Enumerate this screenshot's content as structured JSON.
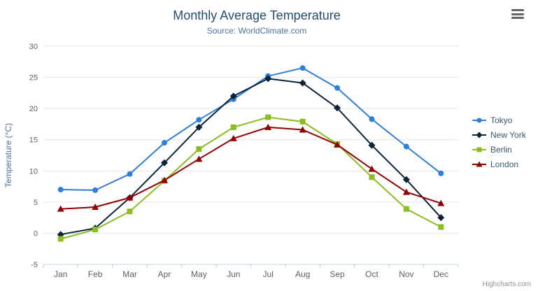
{
  "chart_data": {
    "type": "line",
    "title": "Monthly Average Temperature",
    "subtitle": "Source: WorldClimate.com",
    "xlabel": "",
    "ylabel": "Temperature (°C)",
    "ylim": [
      -5,
      30
    ],
    "ytick_step": 5,
    "grid": true,
    "legend_position": "right",
    "categories": [
      "Jan",
      "Feb",
      "Mar",
      "Apr",
      "May",
      "Jun",
      "Jul",
      "Aug",
      "Sep",
      "Oct",
      "Nov",
      "Dec"
    ],
    "series": [
      {
        "name": "Tokyo",
        "color": "#2f7ed8",
        "marker": "circle",
        "values": [
          7.0,
          6.9,
          9.5,
          14.5,
          18.2,
          21.5,
          25.2,
          26.5,
          23.3,
          18.3,
          13.9,
          9.6
        ]
      },
      {
        "name": "New York",
        "color": "#0d233a",
        "marker": "diamond",
        "values": [
          -0.2,
          0.8,
          5.7,
          11.3,
          17.0,
          22.0,
          24.8,
          24.1,
          20.1,
          14.1,
          8.6,
          2.5
        ]
      },
      {
        "name": "Berlin",
        "color": "#8bbc21",
        "marker": "square",
        "values": [
          -0.9,
          0.6,
          3.5,
          8.4,
          13.5,
          17.0,
          18.6,
          17.9,
          14.3,
          9.0,
          3.9,
          1.0
        ]
      },
      {
        "name": "London",
        "color": "#910000",
        "marker": "triangle",
        "values": [
          3.9,
          4.2,
          5.7,
          8.5,
          11.9,
          15.2,
          17.0,
          16.6,
          14.2,
          10.3,
          6.6,
          4.8
        ]
      }
    ]
  },
  "credits": "Highcharts.com",
  "icons": {
    "context_menu": "hamburger-menu-icon"
  },
  "colors": {
    "title": "#274b6d",
    "subtitle": "#4d759e",
    "grid": "#e6e6e6",
    "axis_line": "#c0d0e0"
  }
}
